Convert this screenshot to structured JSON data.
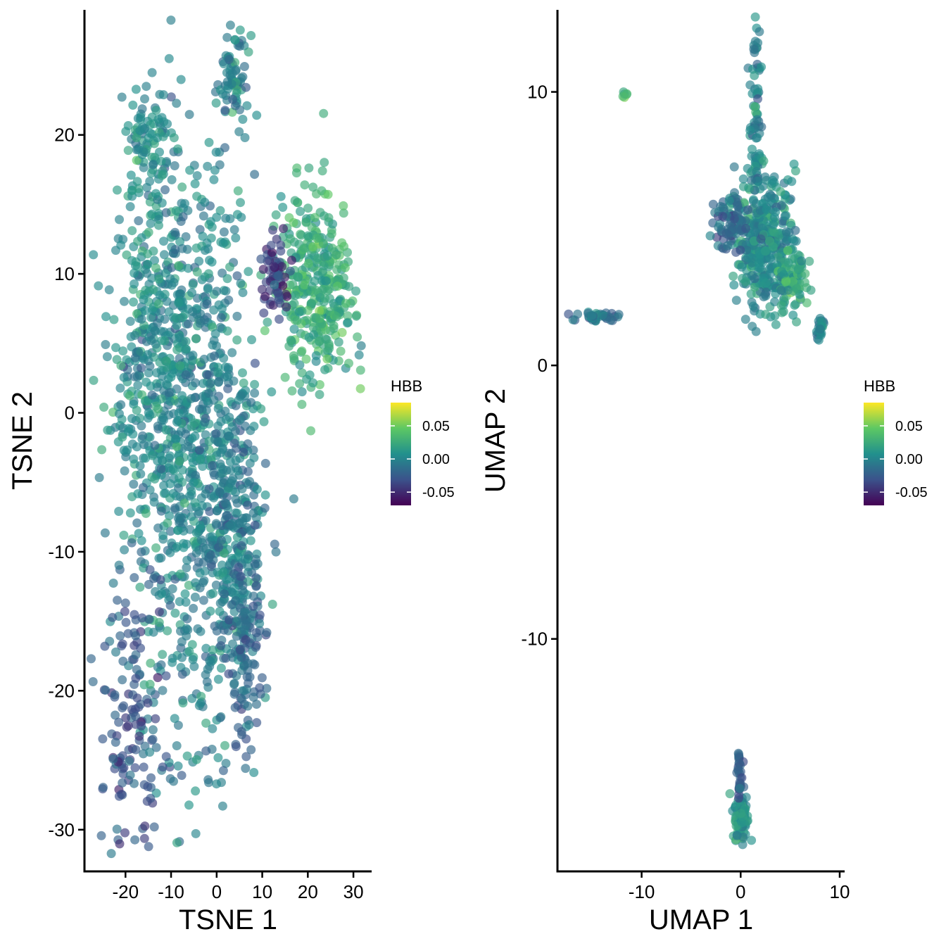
{
  "chart_data": [
    {
      "type": "scatter",
      "xlabel": "TSNE 1",
      "ylabel": "TSNE 2",
      "xlim": [
        -29,
        34
      ],
      "ylim": [
        -33,
        29
      ],
      "xticks": [
        -20,
        -10,
        0,
        10,
        20,
        30
      ],
      "yticks": [
        -30,
        -20,
        -10,
        0,
        10,
        20
      ],
      "grid": false,
      "point_alpha": 0.65,
      "legend": {
        "title": "HBB",
        "position": "right",
        "ticks": [
          "0.05",
          "0.00",
          "-0.05"
        ],
        "range": [
          -0.07,
          0.085
        ]
      },
      "clusters": [
        {
          "x": -6,
          "y": -2,
          "sx": 7,
          "sy": 11,
          "n": 900,
          "mean": 0.0
        },
        {
          "x": -15,
          "y": 5,
          "sx": 4,
          "sy": 5,
          "n": 220,
          "mean": 0.005
        },
        {
          "x": 4,
          "y": -9,
          "sx": 3.2,
          "sy": 6,
          "n": 260,
          "mean": -0.005
        },
        {
          "x": 6,
          "y": -18,
          "sx": 2,
          "sy": 3,
          "n": 100,
          "mean": -0.02
        },
        {
          "x": 22,
          "y": 9,
          "sx": 4,
          "sy": 3.5,
          "n": 350,
          "mean": 0.025
        },
        {
          "x": 13,
          "y": 10,
          "sx": 2,
          "sy": 1.2,
          "n": 60,
          "mean": -0.04
        },
        {
          "x": -15,
          "y": 19,
          "sx": 2.5,
          "sy": 2,
          "n": 90,
          "mean": 0.005
        },
        {
          "x": 4,
          "y": 24,
          "sx": 1.5,
          "sy": 1.5,
          "n": 70,
          "mean": 0.0
        },
        {
          "x": -19,
          "y": -22,
          "sx": 3.5,
          "sy": 6,
          "n": 140,
          "mean": -0.03
        }
      ]
    },
    {
      "type": "scatter",
      "xlabel": "UMAP 1",
      "ylabel": "UMAP 2",
      "xlim": [
        -18.5,
        10.5
      ],
      "ylim": [
        -18.5,
        13
      ],
      "xticks": [
        -10,
        0,
        10
      ],
      "yticks": [
        -10,
        0,
        10
      ],
      "grid": false,
      "point_alpha": 0.65,
      "legend": {
        "title": "HBB",
        "position": "right",
        "ticks": [
          "0.05",
          "0.00",
          "-0.05"
        ],
        "range": [
          -0.07,
          0.085
        ]
      },
      "clusters": [
        {
          "x": 1.5,
          "y": 9,
          "sx": 0.3,
          "sy": 2.5,
          "n": 90,
          "mean": 0.0
        },
        {
          "x": 2.5,
          "y": 4.5,
          "sx": 1.5,
          "sy": 1.2,
          "n": 350,
          "mean": 0.005
        },
        {
          "x": -1,
          "y": 5.3,
          "sx": 1,
          "sy": 0.5,
          "n": 80,
          "mean": -0.02
        },
        {
          "x": 5,
          "y": 3,
          "sx": 0.8,
          "sy": 0.6,
          "n": 80,
          "mean": 0.02
        },
        {
          "x": 8,
          "y": 1.3,
          "sx": 0.25,
          "sy": 0.2,
          "n": 25,
          "mean": 0.0
        },
        {
          "x": -14.5,
          "y": 1.8,
          "sx": 1.2,
          "sy": 0.1,
          "n": 40,
          "mean": -0.01
        },
        {
          "x": -11.7,
          "y": 9.9,
          "sx": 0.1,
          "sy": 0.1,
          "n": 6,
          "mean": 0.03
        },
        {
          "x": 0.1,
          "y": -16.5,
          "sx": 0.35,
          "sy": 0.4,
          "n": 100,
          "mean": 0.01
        },
        {
          "x": -0.1,
          "y": -15,
          "sx": 0.15,
          "sy": 0.5,
          "n": 30,
          "mean": -0.02
        }
      ]
    }
  ]
}
